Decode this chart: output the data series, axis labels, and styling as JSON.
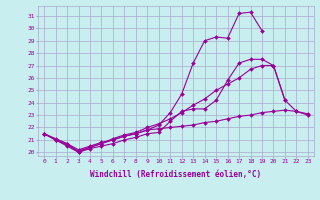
{
  "x": [
    0,
    1,
    2,
    3,
    4,
    5,
    6,
    7,
    8,
    9,
    10,
    11,
    12,
    13,
    14,
    15,
    16,
    17,
    18,
    19,
    20,
    21,
    22,
    23
  ],
  "line1_y": [
    21.5,
    21.0,
    20.7,
    20.0,
    20.3,
    20.5,
    20.7,
    21.0,
    21.2,
    21.5,
    21.6,
    22.5,
    23.3,
    23.5,
    23.5,
    24.2,
    25.8,
    27.2,
    27.5,
    27.5,
    27.0,
    24.2,
    23.3,
    23.0
  ],
  "line2_y": [
    21.5,
    21.0,
    20.6,
    20.1,
    20.4,
    20.7,
    21.0,
    21.3,
    21.5,
    21.8,
    22.2,
    23.2,
    24.7,
    27.2,
    29.0,
    29.3,
    29.2,
    31.2,
    31.3,
    29.8,
    null,
    null,
    null,
    null
  ],
  "line3_y": [
    21.5,
    21.0,
    20.5,
    20.0,
    20.4,
    20.7,
    21.1,
    21.4,
    21.6,
    22.0,
    22.3,
    22.7,
    23.2,
    23.8,
    24.3,
    25.0,
    25.5,
    26.0,
    26.7,
    27.0,
    27.0,
    24.2,
    null,
    null
  ],
  "line4_y": [
    21.5,
    21.1,
    20.7,
    20.2,
    20.5,
    20.8,
    21.0,
    21.3,
    21.5,
    21.8,
    21.9,
    22.0,
    22.1,
    22.2,
    22.4,
    22.5,
    22.7,
    22.9,
    23.0,
    23.2,
    23.3,
    23.4,
    23.3,
    23.1
  ],
  "color": "#990099",
  "bg_color": "#c8eef0",
  "grid_color": "#aaaacc",
  "xlabel": "Windchill (Refroidissement éolien,°C)",
  "ylim": [
    19.7,
    31.8
  ],
  "xlim": [
    -0.5,
    23.5
  ],
  "yticks": [
    20,
    21,
    22,
    23,
    24,
    25,
    26,
    27,
    28,
    29,
    30,
    31
  ],
  "xticks": [
    0,
    1,
    2,
    3,
    4,
    5,
    6,
    7,
    8,
    9,
    10,
    11,
    12,
    13,
    14,
    15,
    16,
    17,
    18,
    19,
    20,
    21,
    22,
    23
  ],
  "xlabel_fontsize": 5.5,
  "tick_fontsize": 4.5,
  "marker_size": 2.0,
  "linewidth": 0.8
}
